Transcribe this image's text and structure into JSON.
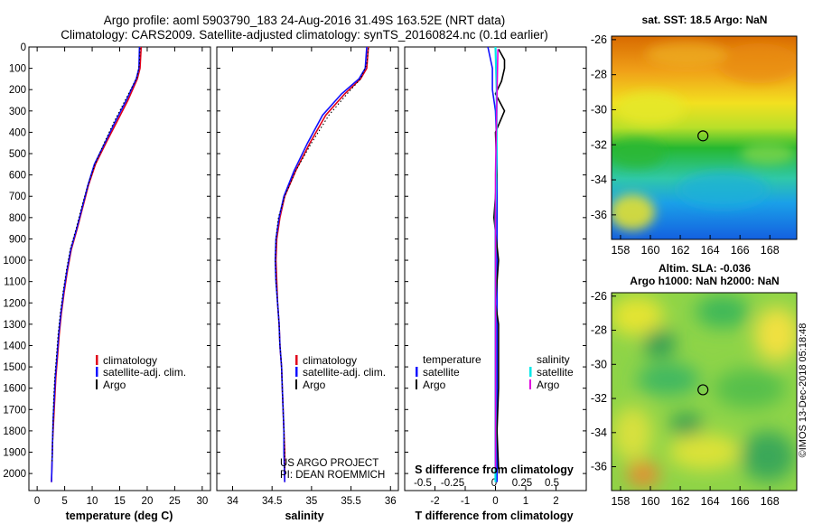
{
  "header": {
    "line1": "Argo profile: aoml 5903790_183 24-Aug-2016 31.49S 163.52E (NRT data)",
    "line2": "Climatology: CARS2009. Satellite-adjusted climatology: synTS_20160824.nc (0.1d earlier)"
  },
  "colors": {
    "climatology": "#e0001a",
    "satellite": "#1010ff",
    "argo": "#000000",
    "satellite_salinity": "#00e8e8",
    "argo_salinity": "#e000e0"
  },
  "depth_axis": {
    "min": 0,
    "max": 2080,
    "ticks": [
      0,
      100,
      200,
      300,
      400,
      500,
      600,
      700,
      800,
      900,
      1000,
      1100,
      1200,
      1300,
      1400,
      1500,
      1600,
      1700,
      1800,
      1900,
      2000
    ],
    "tick_labels": [
      "0",
      "100",
      "200",
      "300",
      "400",
      "500",
      "600",
      "700",
      "800",
      "900",
      "1000",
      "1100",
      "1200",
      "1300",
      "1400",
      "1500",
      "1600",
      "1700",
      "1800",
      "1900",
      "2000"
    ]
  },
  "chart_data": [
    {
      "type": "line",
      "id": "temperature",
      "xlabel": "temperature (deg C)",
      "xlim": [
        -1.5,
        31.5
      ],
      "xticks": [
        0,
        5,
        10,
        15,
        20,
        25,
        30
      ],
      "xtick_labels": [
        "0",
        "5",
        "10",
        "15",
        "20",
        "25",
        "30"
      ],
      "legend": [
        "climatology",
        "satellite-adj. clim.",
        "Argo"
      ],
      "series": [
        {
          "name": "climatology",
          "values": [
            [
              18.9,
              0
            ],
            [
              18.7,
              100
            ],
            [
              18.2,
              150
            ],
            [
              16.5,
              250
            ],
            [
              14.5,
              350
            ],
            [
              12.5,
              450
            ],
            [
              10.6,
              550
            ],
            [
              9.3,
              650
            ],
            [
              8.3,
              750
            ],
            [
              7.3,
              850
            ],
            [
              6.2,
              950
            ],
            [
              5.5,
              1050
            ],
            [
              4.9,
              1150
            ],
            [
              4.4,
              1250
            ],
            [
              4.0,
              1350
            ],
            [
              3.7,
              1450
            ],
            [
              3.4,
              1550
            ],
            [
              3.2,
              1650
            ],
            [
              3.0,
              1750
            ],
            [
              2.8,
              1850
            ],
            [
              2.7,
              1950
            ],
            [
              2.6,
              2040
            ]
          ]
        },
        {
          "name": "satellite-adj. clim.",
          "values": [
            [
              18.6,
              0
            ],
            [
              18.5,
              100
            ],
            [
              18.0,
              150
            ],
            [
              16.2,
              250
            ],
            [
              14.2,
              350
            ],
            [
              12.3,
              450
            ],
            [
              10.4,
              550
            ],
            [
              9.2,
              650
            ],
            [
              8.2,
              750
            ],
            [
              7.2,
              850
            ],
            [
              6.1,
              950
            ],
            [
              5.4,
              1050
            ],
            [
              4.8,
              1150
            ],
            [
              4.3,
              1250
            ],
            [
              3.9,
              1350
            ],
            [
              3.6,
              1450
            ],
            [
              3.3,
              1550
            ],
            [
              3.1,
              1650
            ],
            [
              2.9,
              1750
            ],
            [
              2.8,
              1850
            ],
            [
              2.7,
              1950
            ],
            [
              2.6,
              2040
            ]
          ]
        },
        {
          "name": "Argo",
          "values": [
            [
              18.7,
              5
            ],
            [
              18.6,
              80
            ],
            [
              18.2,
              140
            ],
            [
              16.0,
              250
            ],
            [
              14.0,
              350
            ],
            [
              12.2,
              450
            ],
            [
              10.5,
              550
            ],
            [
              9.2,
              650
            ],
            [
              8.1,
              750
            ],
            [
              7.1,
              850
            ],
            [
              6.0,
              950
            ],
            [
              5.3,
              1050
            ],
            [
              4.7,
              1150
            ],
            [
              4.2,
              1250
            ],
            [
              3.8,
              1350
            ],
            [
              3.5,
              1450
            ],
            [
              3.2,
              1550
            ],
            [
              3.0,
              1650
            ],
            [
              2.9,
              1750
            ],
            [
              2.8,
              1850
            ],
            [
              2.7,
              1950
            ]
          ]
        }
      ]
    },
    {
      "type": "line",
      "id": "salinity",
      "xlabel": "salinity",
      "xlim": [
        33.8,
        36.1
      ],
      "xticks": [
        34,
        34.5,
        35,
        35.5,
        36
      ],
      "xtick_labels": [
        "34",
        "34.5",
        "35",
        "35.5",
        "36"
      ],
      "legend": [
        "climatology",
        "satellite-adj. clim.",
        "Argo"
      ],
      "series": [
        {
          "name": "climatology",
          "values": [
            [
              35.72,
              0
            ],
            [
              35.7,
              100
            ],
            [
              35.62,
              150
            ],
            [
              35.42,
              220
            ],
            [
              35.18,
              320
            ],
            [
              34.98,
              450
            ],
            [
              34.8,
              580
            ],
            [
              34.66,
              700
            ],
            [
              34.6,
              800
            ],
            [
              34.56,
              900
            ],
            [
              34.55,
              1000
            ],
            [
              34.56,
              1100
            ],
            [
              34.57,
              1200
            ],
            [
              34.59,
              1300
            ],
            [
              34.6,
              1400
            ],
            [
              34.62,
              1500
            ],
            [
              34.63,
              1600
            ],
            [
              34.64,
              1700
            ],
            [
              34.65,
              1800
            ],
            [
              34.66,
              1900
            ],
            [
              34.66,
              2040
            ]
          ]
        },
        {
          "name": "satellite-adj. clim.",
          "values": [
            [
              35.7,
              0
            ],
            [
              35.68,
              100
            ],
            [
              35.6,
              150
            ],
            [
              35.38,
              220
            ],
            [
              35.14,
              320
            ],
            [
              34.95,
              450
            ],
            [
              34.78,
              580
            ],
            [
              34.65,
              700
            ],
            [
              34.59,
              800
            ],
            [
              34.55,
              900
            ],
            [
              34.54,
              1000
            ],
            [
              34.55,
              1100
            ],
            [
              34.57,
              1200
            ],
            [
              34.59,
              1300
            ],
            [
              34.6,
              1400
            ],
            [
              34.62,
              1500
            ],
            [
              34.63,
              1600
            ],
            [
              34.64,
              1700
            ],
            [
              34.65,
              1800
            ],
            [
              34.65,
              1900
            ],
            [
              34.66,
              2040
            ]
          ]
        },
        {
          "name": "Argo",
          "values": [
            [
              35.72,
              5
            ],
            [
              35.7,
              80
            ],
            [
              35.62,
              150
            ],
            [
              35.45,
              220
            ],
            [
              35.22,
              320
            ],
            [
              35.0,
              450
            ],
            [
              34.8,
              580
            ],
            [
              34.66,
              700
            ],
            [
              34.58,
              800
            ],
            [
              34.55,
              900
            ],
            [
              34.54,
              1000
            ],
            [
              34.55,
              1100
            ],
            [
              34.57,
              1200
            ],
            [
              34.59,
              1300
            ],
            [
              34.6,
              1400
            ],
            [
              34.62,
              1500
            ],
            [
              34.63,
              1600
            ],
            [
              34.64,
              1700
            ],
            [
              34.65,
              1800
            ],
            [
              34.66,
              1900
            ],
            [
              34.66,
              1980
            ]
          ]
        }
      ],
      "credits": [
        "US ARGO PROJECT",
        "PI: DEAN ROEMMICH"
      ]
    },
    {
      "type": "line",
      "id": "difference",
      "xlabel": "T difference from climatology",
      "xlabel_top": "S difference from climatology",
      "xlim": [
        -3.0,
        3.0
      ],
      "xticks": [
        -2,
        -1,
        0,
        1,
        2
      ],
      "xtick_labels": [
        "-2",
        "-1",
        "0",
        "1",
        "2"
      ],
      "stick_labels": [
        "-0.5",
        "-0.25",
        "0",
        "0.25",
        "0.5"
      ],
      "legend_temperature": {
        "title": "temperature",
        "items": [
          "satellite",
          "Argo"
        ]
      },
      "legend_salinity": {
        "title": "salinity",
        "items": [
          "satellite",
          "Argo"
        ]
      },
      "series": [
        {
          "name": "T satellite",
          "values": [
            [
              -0.25,
              0
            ],
            [
              -0.1,
              100
            ],
            [
              -0.1,
              200
            ],
            [
              0.0,
              300
            ],
            [
              0.05,
              500
            ],
            [
              0.05,
              800
            ],
            [
              0.05,
              1000
            ],
            [
              0.05,
              1300
            ],
            [
              0.05,
              1600
            ],
            [
              0.05,
              2040
            ]
          ]
        },
        {
          "name": "T Argo",
          "values": [
            [
              0.1,
              10
            ],
            [
              0.3,
              60
            ],
            [
              0.3,
              100
            ],
            [
              0.2,
              160
            ],
            [
              0.0,
              220
            ],
            [
              0.3,
              300
            ],
            [
              0.0,
              400
            ],
            [
              0.05,
              600
            ],
            [
              -0.05,
              800
            ],
            [
              0.1,
              1000
            ],
            [
              0.0,
              1200
            ],
            [
              0.1,
              1300
            ],
            [
              0.1,
              1600
            ],
            [
              0.05,
              1800
            ],
            [
              0.1,
              1980
            ]
          ]
        },
        {
          "name": "S satellite",
          "values": [
            [
              0.0,
              0
            ],
            [
              0.01,
              200
            ],
            [
              0.01,
              500
            ],
            [
              0.0,
              800
            ],
            [
              0.0,
              1100
            ],
            [
              0.0,
              1500
            ],
            [
              0.0,
              2040
            ]
          ]
        },
        {
          "name": "S Argo",
          "values": [
            [
              0.02,
              10
            ],
            [
              0.01,
              300
            ],
            [
              0.0,
              600
            ],
            [
              0.0,
              1000
            ],
            [
              0.0,
              1500
            ],
            [
              0.0,
              1980
            ]
          ]
        }
      ]
    },
    {
      "type": "heatmap",
      "id": "sst-map",
      "title": "sat. SST: 18.5 Argo: NaN",
      "xlim": [
        157.4,
        169.8
      ],
      "ylim": [
        -37.4,
        -25.8
      ],
      "xticks": [
        158,
        160,
        162,
        164,
        166,
        168
      ],
      "xtick_labels": [
        "158",
        "160",
        "162",
        "164",
        "166",
        "168"
      ],
      "yticks": [
        -26,
        -28,
        -30,
        -32,
        -34,
        -36
      ],
      "ytick_labels": [
        "-26",
        "-28",
        "-30",
        "-32",
        "-34",
        "-36"
      ],
      "profile_position": [
        163.52,
        -31.49
      ]
    },
    {
      "type": "heatmap",
      "id": "sla-map",
      "title": "Altim. SLA: -0.036",
      "subtitle": "Argo h1000: NaN h2000: NaN",
      "xlim": [
        157.4,
        169.8
      ],
      "ylim": [
        -37.4,
        -25.8
      ],
      "xticks": [
        158,
        160,
        162,
        164,
        166,
        168
      ],
      "xtick_labels": [
        "158",
        "160",
        "162",
        "164",
        "166",
        "168"
      ],
      "yticks": [
        -26,
        -28,
        -30,
        -32,
        -34,
        -36
      ],
      "ytick_labels": [
        "-26",
        "-28",
        "-30",
        "-32",
        "-34",
        "-36"
      ],
      "profile_position": [
        163.52,
        -31.49
      ]
    }
  ],
  "footer": {
    "imos_stamp": "©IMOS 13-Dec-2018 05:18:48"
  }
}
